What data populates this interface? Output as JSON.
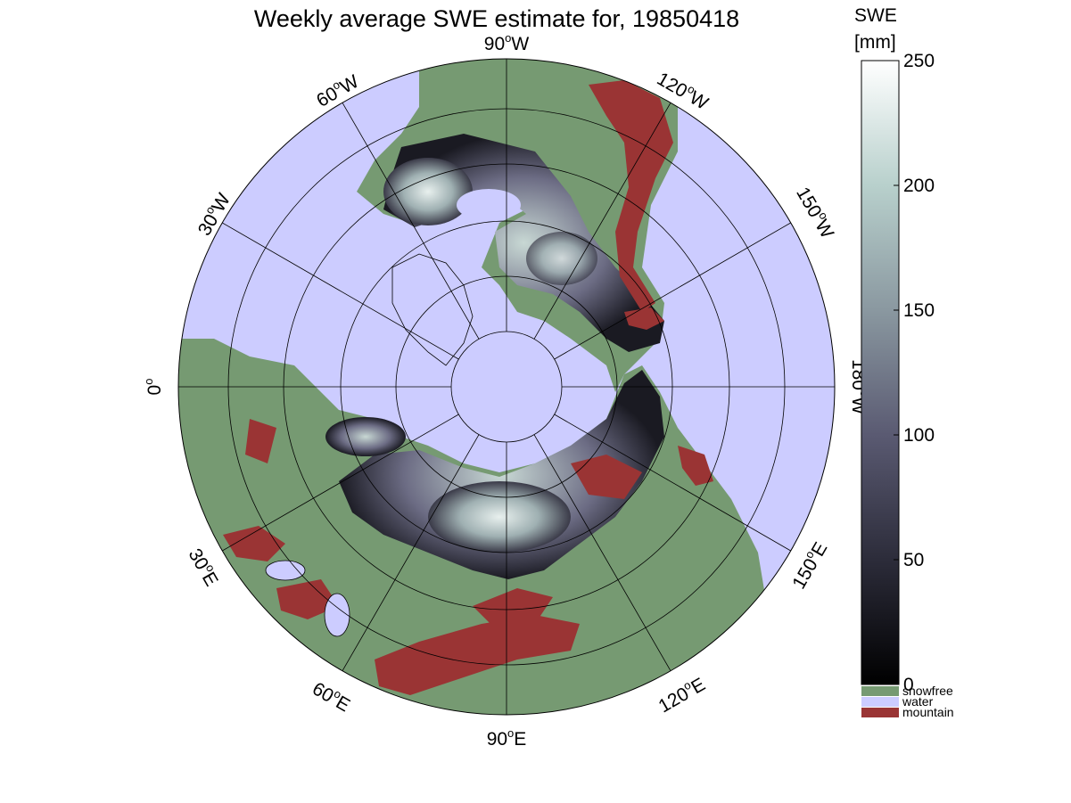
{
  "title": "Weekly average SWE estimate for, 19850418",
  "projection": "north-polar azimuthal",
  "longitude_labels": [
    {
      "text": "90",
      "suffix": "W"
    },
    {
      "text": "60",
      "suffix": "W"
    },
    {
      "text": "30",
      "suffix": "W"
    },
    {
      "text": "0",
      "suffix": ""
    },
    {
      "text": "30",
      "suffix": "E"
    },
    {
      "text": "60",
      "suffix": "E"
    },
    {
      "text": "90",
      "suffix": "E"
    },
    {
      "text": "120",
      "suffix": "E"
    },
    {
      "text": "150",
      "suffix": "E"
    },
    {
      "text": "180",
      "suffix": "W"
    },
    {
      "text": "150",
      "suffix": "W"
    },
    {
      "text": "120",
      "suffix": "W"
    }
  ],
  "colorbar": {
    "title_line1": "SWE",
    "title_line2": "[mm]",
    "min": 0,
    "max": 250,
    "ticks": [
      "0",
      "50",
      "100",
      "150",
      "200",
      "250"
    ],
    "colors": [
      "#000000",
      "#2c2c3a",
      "#5a5a72",
      "#8a98a0",
      "#b8d0cc",
      "#ffffff"
    ]
  },
  "classes": [
    {
      "label": "snowfree",
      "color": "#769a72"
    },
    {
      "label": "water",
      "color": "#ccccff"
    },
    {
      "label": "mountain",
      "color": "#9a3434"
    }
  ]
}
